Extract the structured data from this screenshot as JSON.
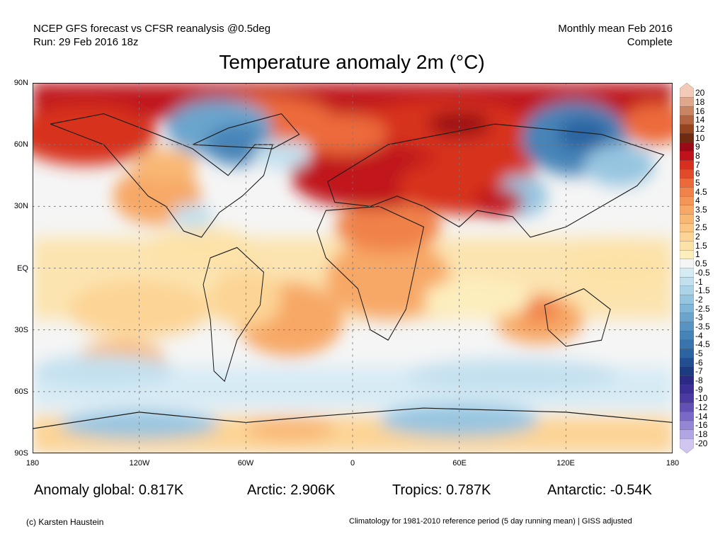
{
  "header": {
    "source": "NCEP GFS forecast vs CFSR reanalysis @0.5deg",
    "run": "Run: 29 Feb 2016 18z",
    "period": "Monthly mean Feb 2016",
    "status": "Complete"
  },
  "title": "Temperature anomaly 2m (°C)",
  "map": {
    "lat_labels": [
      "90N",
      "60N",
      "30N",
      "EQ",
      "30S",
      "60S",
      "90S"
    ],
    "lon_labels": [
      "180",
      "120W",
      "60W",
      "0",
      "60E",
      "120E",
      "180"
    ]
  },
  "colorbar": {
    "labels": [
      "20",
      "18",
      "16",
      "14",
      "12",
      "10",
      "9",
      "8",
      "7",
      "6",
      "5",
      "4.5",
      "4",
      "3.5",
      "3",
      "2.5",
      "2",
      "1.5",
      "1",
      "0.5",
      "-0.5",
      "-1",
      "-1.5",
      "-2",
      "-2.5",
      "-3",
      "-3.5",
      "-4",
      "-4.5",
      "-5",
      "-6",
      "-7",
      "-8",
      "-9",
      "-10",
      "-12",
      "-14",
      "-16",
      "-18",
      "-20"
    ],
    "colors": [
      "#f3c9b8",
      "#dfa78c",
      "#c98562",
      "#b36440",
      "#94451f",
      "#6f2a10",
      "#9a0a16",
      "#c0121c",
      "#d7301f",
      "#e24a2c",
      "#ec6a3a",
      "#f0824a",
      "#f49658",
      "#f7a866",
      "#f9b774",
      "#fbc684",
      "#fcd495",
      "#fde2a8",
      "#fdeebe",
      "#f5f5f5",
      "#d7ebf5",
      "#c3e0ef",
      "#acd3e8",
      "#96c5e0",
      "#80b6d7",
      "#6ba5cd",
      "#5794c2",
      "#4684b8",
      "#3874ad",
      "#2c63a1",
      "#234f92",
      "#1c3b82",
      "#2a2a86",
      "#3b2f95",
      "#4c3aa3",
      "#6250b4",
      "#7a69c5",
      "#9585d5",
      "#b2a5e3",
      "#d0c6f0"
    ]
  },
  "stats": {
    "global": "Anomaly global: 0.817K",
    "arctic": "Arctic: 2.906K",
    "tropics": "Tropics: 0.787K",
    "antarctic": "Antarctic: -0.54K"
  },
  "footer": {
    "credit": "(c) Karsten Haustein",
    "note": "Climatology for 1981-2010 reference period (5 day running mean) | GISS adjusted"
  }
}
